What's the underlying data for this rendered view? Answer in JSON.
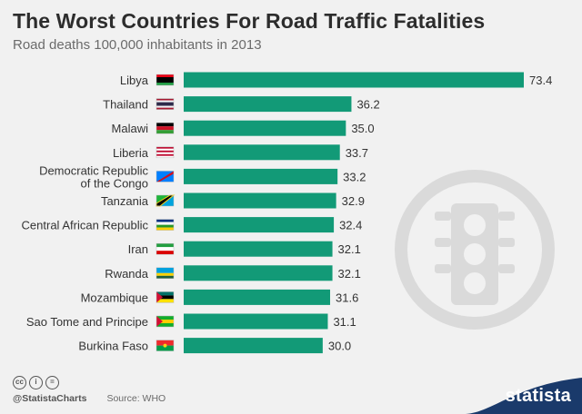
{
  "title": "The Worst Countries For Road Traffic Fatalities",
  "subtitle": "Road deaths 100,000 inhabitants in 2013",
  "footer": {
    "cc_icons": [
      "cc",
      "i",
      "="
    ],
    "handle": "@StatistaCharts",
    "source": "Source: WHO",
    "brand": "statista"
  },
  "colors": {
    "bar": "#129a77",
    "title": "#2d2d2d",
    "light_circle": "#dadada",
    "brand": "#1a3a6b"
  },
  "chart_data": {
    "type": "bar",
    "orientation": "horizontal",
    "title": "The Worst Countries For Road Traffic Fatalities",
    "subtitle": "Road deaths 100,000 inhabitants in 2013",
    "categories": [
      "Libya",
      "Thailand",
      "Malawi",
      "Liberia",
      "Democratic Republic of the Congo",
      "Tanzania",
      "Central African Republic",
      "Iran",
      "Rwanda",
      "Mozambique",
      "Sao Tome and Principe",
      "Burkina Faso"
    ],
    "label_lines": [
      [
        "Libya"
      ],
      [
        "Thailand"
      ],
      [
        "Malawi"
      ],
      [
        "Liberia"
      ],
      [
        "Democratic Republic",
        "of the Congo"
      ],
      [
        "Tanzania"
      ],
      [
        "Central African Republic"
      ],
      [
        "Iran"
      ],
      [
        "Rwanda"
      ],
      [
        "Mozambique"
      ],
      [
        "Sao Tome and Principe"
      ],
      [
        "Burkina Faso"
      ]
    ],
    "values": [
      73.4,
      36.2,
      35.0,
      33.7,
      33.2,
      32.9,
      32.4,
      32.1,
      32.1,
      31.6,
      31.1,
      30.0
    ],
    "value_labels": [
      "73.4",
      "36.2",
      "35.0",
      "33.7",
      "33.2",
      "32.9",
      "32.4",
      "32.1",
      "32.1",
      "31.6",
      "31.1",
      "30.0"
    ],
    "xlim": [
      0,
      73.4
    ],
    "grid": false,
    "legend": "none"
  }
}
